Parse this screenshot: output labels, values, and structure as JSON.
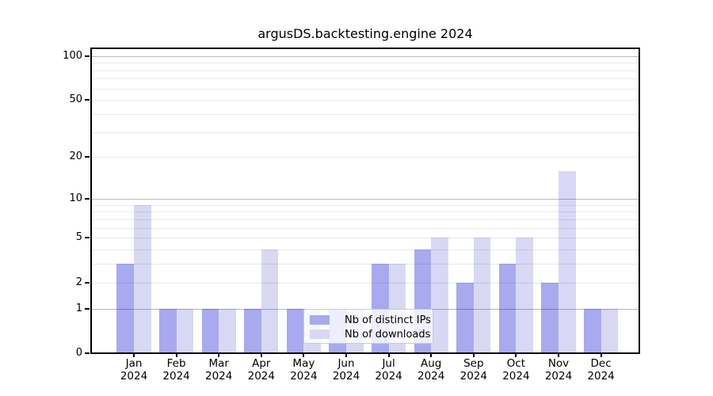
{
  "figure": {
    "background": "#ffffff"
  },
  "chart_data": {
    "type": "bar",
    "title": "argusDS.backtesting.engine 2024",
    "categories": [
      {
        "month": "Jan",
        "year": "2024"
      },
      {
        "month": "Feb",
        "year": "2024"
      },
      {
        "month": "Mar",
        "year": "2024"
      },
      {
        "month": "Apr",
        "year": "2024"
      },
      {
        "month": "May",
        "year": "2024"
      },
      {
        "month": "Jun",
        "year": "2024"
      },
      {
        "month": "Jul",
        "year": "2024"
      },
      {
        "month": "Aug",
        "year": "2024"
      },
      {
        "month": "Sep",
        "year": "2024"
      },
      {
        "month": "Oct",
        "year": "2024"
      },
      {
        "month": "Nov",
        "year": "2024"
      },
      {
        "month": "Dec",
        "year": "2024"
      }
    ],
    "series": [
      {
        "name": "Nb of distinct IPs",
        "color": "#a9a9f0",
        "values": [
          3,
          1,
          1,
          1,
          1,
          1,
          3,
          4,
          2,
          3,
          2,
          1
        ]
      },
      {
        "name": "Nb of downloads",
        "color": "#d8d8f5",
        "values": [
          9,
          1,
          1,
          4,
          1,
          1,
          3,
          5,
          5,
          5,
          16,
          1
        ]
      }
    ],
    "y_axis": {
      "scale": "log10(1+v)",
      "tick_values": [
        0,
        1,
        2,
        5,
        10,
        20,
        50,
        100
      ],
      "tick_labels": [
        "0",
        "1",
        "2",
        "5",
        "10",
        "20",
        "50",
        "100"
      ],
      "major_gridlines": [
        1,
        10,
        100
      ],
      "minor_gridlines": [
        2,
        3,
        4,
        5,
        6,
        7,
        8,
        9,
        20,
        30,
        40,
        50,
        60,
        70,
        80,
        90
      ],
      "range_max": 110
    },
    "legend_position": "lower center",
    "grid": true
  }
}
